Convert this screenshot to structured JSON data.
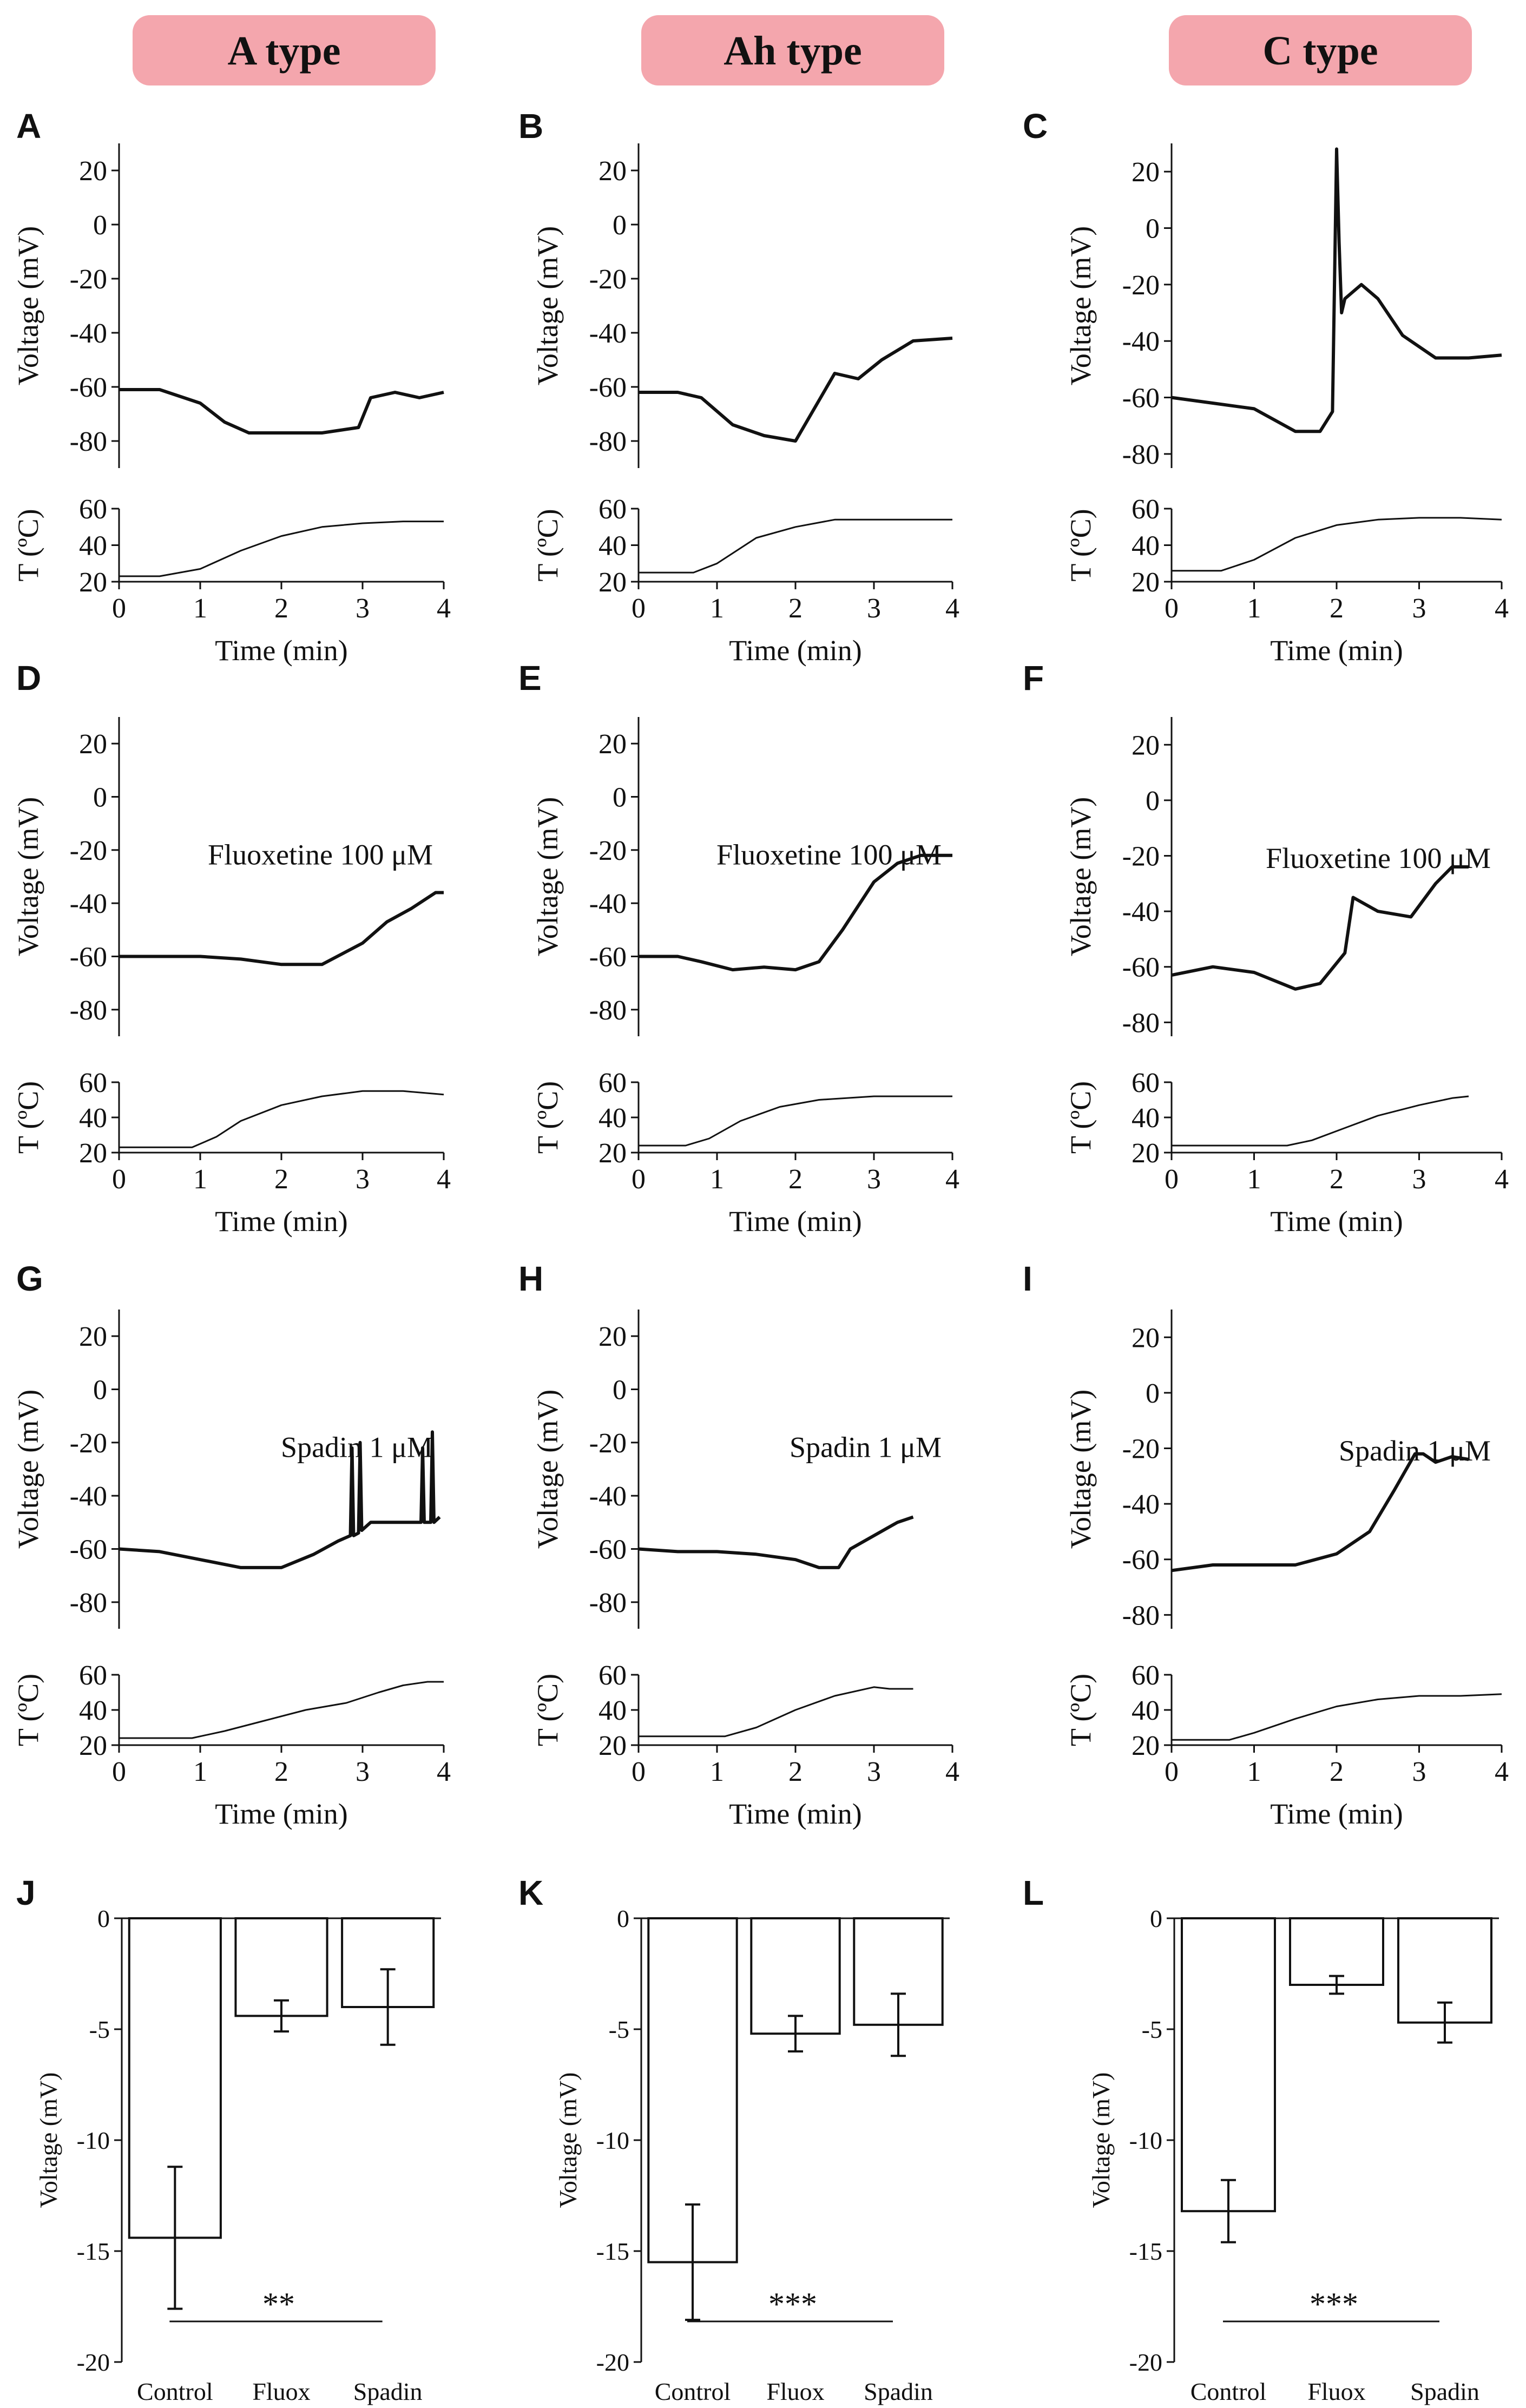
{
  "header_color": "#f4a6ad",
  "column_headers": [
    "A type",
    "Ah type",
    "C type"
  ],
  "chart_data": [
    {
      "panel": "A",
      "type": "line",
      "title": "",
      "voltage_axis": {
        "ylabel": "Voltage (mV)",
        "ylim": [
          -90,
          30
        ],
        "ticks": [
          20,
          0,
          -20,
          -40,
          -60,
          -80
        ]
      },
      "temp_axis": {
        "ylabel": "T (ºC)",
        "ylim": [
          20,
          60
        ],
        "ticks": [
          60,
          40,
          20
        ]
      },
      "x_axis": {
        "xlabel": "Time (min)",
        "xlim": [
          0,
          4
        ],
        "ticks": [
          0,
          1,
          2,
          3,
          4
        ]
      },
      "annotation": "",
      "voltage_series": {
        "name": "Voltage",
        "x": [
          0,
          0.5,
          1.0,
          1.3,
          1.6,
          2.0,
          2.5,
          2.95,
          3.1,
          3.4,
          3.7,
          4.0
        ],
        "y": [
          -61,
          -61,
          -66,
          -73,
          -77,
          -77,
          -77,
          -75,
          -64,
          -62,
          -64,
          -62
        ]
      },
      "temp_series": {
        "name": "Temperature",
        "x": [
          0,
          0.5,
          1.0,
          1.5,
          2.0,
          2.5,
          3.0,
          3.5,
          4.0
        ],
        "y": [
          23,
          23,
          27,
          37,
          45,
          50,
          52,
          53,
          53
        ]
      }
    },
    {
      "panel": "B",
      "type": "line",
      "title": "",
      "voltage_axis": {
        "ylabel": "Voltage (mV)",
        "ylim": [
          -90,
          30
        ],
        "ticks": [
          20,
          0,
          -20,
          -40,
          -60,
          -80
        ]
      },
      "temp_axis": {
        "ylabel": "T (ºC)",
        "ylim": [
          20,
          60
        ],
        "ticks": [
          60,
          40,
          20
        ]
      },
      "x_axis": {
        "xlabel": "Time (min)",
        "xlim": [
          0,
          4
        ],
        "ticks": [
          0,
          1,
          2,
          3,
          4
        ]
      },
      "annotation": "",
      "voltage_series": {
        "name": "Voltage",
        "x": [
          0,
          0.5,
          0.8,
          1.2,
          1.6,
          2.0,
          2.2,
          2.5,
          2.8,
          3.1,
          3.5,
          4.0
        ],
        "y": [
          -62,
          -62,
          -64,
          -74,
          -78,
          -80,
          -70,
          -55,
          -57,
          -50,
          -43,
          -42
        ]
      },
      "temp_series": {
        "name": "Temperature",
        "x": [
          0,
          0.7,
          1.0,
          1.5,
          2.0,
          2.5,
          3.0,
          3.5,
          4.0
        ],
        "y": [
          25,
          25,
          30,
          44,
          50,
          54,
          54,
          54,
          54
        ]
      }
    },
    {
      "panel": "C",
      "type": "line",
      "title": "",
      "voltage_axis": {
        "ylabel": "Voltage (mV)",
        "ylim": [
          -85,
          30
        ],
        "ticks": [
          20,
          0,
          -20,
          -40,
          -60,
          -80
        ]
      },
      "temp_axis": {
        "ylabel": "T (ºC)",
        "ylim": [
          20,
          60
        ],
        "ticks": [
          60,
          40,
          20
        ]
      },
      "x_axis": {
        "xlabel": "Time (min)",
        "xlim": [
          0,
          4
        ],
        "ticks": [
          0,
          1,
          2,
          3,
          4
        ]
      },
      "annotation": "",
      "voltage_series": {
        "name": "Voltage",
        "x": [
          0,
          0.5,
          1.0,
          1.5,
          1.8,
          1.95,
          2.0,
          2.03,
          2.06,
          2.1,
          2.3,
          2.5,
          2.8,
          3.2,
          3.6,
          4.0
        ],
        "y": [
          -60,
          -62,
          -64,
          -72,
          -72,
          -65,
          28,
          -5,
          -30,
          -25,
          -20,
          -25,
          -38,
          -46,
          -46,
          -45
        ]
      },
      "temp_series": {
        "name": "Temperature",
        "x": [
          0,
          0.6,
          1.0,
          1.5,
          2.0,
          2.5,
          3.0,
          3.5,
          4.0
        ],
        "y": [
          26,
          26,
          32,
          44,
          51,
          54,
          55,
          55,
          54
        ]
      }
    },
    {
      "panel": "D",
      "type": "line",
      "title": "",
      "voltage_axis": {
        "ylabel": "Voltage (mV)",
        "ylim": [
          -90,
          30
        ],
        "ticks": [
          20,
          0,
          -20,
          -40,
          -60,
          -80
        ]
      },
      "temp_axis": {
        "ylabel": "T (ºC)",
        "ylim": [
          20,
          60
        ],
        "ticks": [
          60,
          40,
          20
        ]
      },
      "x_axis": {
        "xlabel": "Time (min)",
        "xlim": [
          0,
          4
        ],
        "ticks": [
          0,
          1,
          2,
          3,
          4
        ]
      },
      "annotation": "Fluoxetine 100 μM",
      "voltage_series": {
        "name": "Voltage",
        "x": [
          0,
          0.5,
          1.0,
          1.5,
          2.0,
          2.5,
          3.0,
          3.3,
          3.6,
          3.9,
          4.0
        ],
        "y": [
          -60,
          -60,
          -60,
          -61,
          -63,
          -63,
          -55,
          -47,
          -42,
          -36,
          -36
        ]
      },
      "temp_series": {
        "name": "Temperature",
        "x": [
          0,
          0.9,
          1.2,
          1.5,
          2.0,
          2.5,
          3.0,
          3.5,
          4.0
        ],
        "y": [
          23,
          23,
          29,
          38,
          47,
          52,
          55,
          55,
          53
        ]
      }
    },
    {
      "panel": "E",
      "type": "line",
      "title": "",
      "voltage_axis": {
        "ylabel": "Voltage (mV)",
        "ylim": [
          -90,
          30
        ],
        "ticks": [
          20,
          0,
          -20,
          -40,
          -60,
          -80
        ]
      },
      "temp_axis": {
        "ylabel": "T (ºC)",
        "ylim": [
          20,
          60
        ],
        "ticks": [
          60,
          40,
          20
        ]
      },
      "x_axis": {
        "xlabel": "Time (min)",
        "xlim": [
          0,
          4
        ],
        "ticks": [
          0,
          1,
          2,
          3,
          4
        ]
      },
      "annotation": "Fluoxetine 100 μM",
      "voltage_series": {
        "name": "Voltage",
        "x": [
          0,
          0.5,
          0.8,
          1.2,
          1.6,
          2.0,
          2.3,
          2.6,
          3.0,
          3.3,
          3.6,
          4.0
        ],
        "y": [
          -60,
          -60,
          -62,
          -65,
          -64,
          -65,
          -62,
          -50,
          -32,
          -25,
          -22,
          -22
        ]
      },
      "temp_series": {
        "name": "Temperature",
        "x": [
          0,
          0.6,
          0.9,
          1.3,
          1.8,
          2.3,
          3.0,
          3.5,
          4.0
        ],
        "y": [
          24,
          24,
          28,
          38,
          46,
          50,
          52,
          52,
          52
        ]
      }
    },
    {
      "panel": "F",
      "type": "line",
      "title": "",
      "voltage_axis": {
        "ylabel": "Voltage (mV)",
        "ylim": [
          -85,
          30
        ],
        "ticks": [
          20,
          0,
          -20,
          -40,
          -60,
          -80
        ]
      },
      "temp_axis": {
        "ylabel": "T (ºC)",
        "ylim": [
          20,
          60
        ],
        "ticks": [
          60,
          40,
          20
        ]
      },
      "x_axis": {
        "xlabel": "Time (min)",
        "xlim": [
          0,
          4
        ],
        "ticks": [
          0,
          1,
          2,
          3,
          4
        ]
      },
      "annotation": "Fluoxetine 100 μM",
      "voltage_series": {
        "name": "Voltage",
        "x": [
          0,
          0.5,
          1.0,
          1.5,
          1.8,
          2.1,
          2.2,
          2.5,
          2.9,
          3.2,
          3.4,
          3.6
        ],
        "y": [
          -63,
          -60,
          -62,
          -68,
          -66,
          -55,
          -35,
          -40,
          -42,
          -30,
          -24,
          -24
        ]
      },
      "temp_series": {
        "name": "Temperature",
        "x": [
          0,
          1.4,
          1.7,
          2.1,
          2.5,
          3.0,
          3.4,
          3.6
        ],
        "y": [
          24,
          24,
          27,
          34,
          41,
          47,
          51,
          52
        ]
      }
    },
    {
      "panel": "G",
      "type": "line",
      "title": "",
      "voltage_axis": {
        "ylabel": "Voltage (mV)",
        "ylim": [
          -90,
          30
        ],
        "ticks": [
          20,
          0,
          -20,
          -40,
          -60,
          -80
        ]
      },
      "temp_axis": {
        "ylabel": "T (ºC)",
        "ylim": [
          20,
          60
        ],
        "ticks": [
          60,
          40,
          20
        ]
      },
      "x_axis": {
        "xlabel": "Time (min)",
        "xlim": [
          0,
          4
        ],
        "ticks": [
          0,
          1,
          2,
          3,
          4
        ]
      },
      "annotation": "Spadin 1 μM",
      "voltage_series": {
        "name": "Voltage",
        "x": [
          0,
          0.5,
          1.0,
          1.5,
          2.0,
          2.4,
          2.7,
          2.85,
          2.87,
          2.89,
          2.95,
          2.97,
          2.99,
          3.1,
          3.6,
          3.72,
          3.74,
          3.76,
          3.84,
          3.86,
          3.88,
          3.95
        ],
        "y": [
          -60,
          -61,
          -64,
          -67,
          -67,
          -62,
          -57,
          -55,
          -22,
          -55,
          -54,
          -20,
          -53,
          -50,
          -50,
          -50,
          -22,
          -50,
          -50,
          -16,
          -50,
          -48
        ]
      },
      "temp_series": {
        "name": "Temperature",
        "x": [
          0,
          0.9,
          1.3,
          1.8,
          2.3,
          2.8,
          3.2,
          3.5,
          3.8,
          4.0
        ],
        "y": [
          24,
          24,
          28,
          34,
          40,
          44,
          50,
          54,
          56,
          56
        ]
      }
    },
    {
      "panel": "H",
      "type": "line",
      "title": "",
      "voltage_axis": {
        "ylabel": "Voltage (mV)",
        "ylim": [
          -90,
          30
        ],
        "ticks": [
          20,
          0,
          -20,
          -40,
          -60,
          -80
        ]
      },
      "temp_axis": {
        "ylabel": "T (ºC)",
        "ylim": [
          20,
          60
        ],
        "ticks": [
          60,
          40,
          20
        ]
      },
      "x_axis": {
        "xlabel": "Time (min)",
        "xlim": [
          0,
          4
        ],
        "ticks": [
          0,
          1,
          2,
          3,
          4
        ]
      },
      "annotation": "Spadin 1 μM",
      "voltage_series": {
        "name": "Voltage",
        "x": [
          0,
          0.5,
          1.0,
          1.5,
          2.0,
          2.3,
          2.55,
          2.7,
          3.0,
          3.3,
          3.5
        ],
        "y": [
          -60,
          -61,
          -61,
          -62,
          -64,
          -67,
          -67,
          -60,
          -55,
          -50,
          -48
        ]
      },
      "temp_series": {
        "name": "Temperature",
        "x": [
          0,
          1.1,
          1.5,
          2.0,
          2.5,
          3.0,
          3.2,
          3.5
        ],
        "y": [
          25,
          25,
          30,
          40,
          48,
          53,
          52,
          52
        ]
      }
    },
    {
      "panel": "I",
      "type": "line",
      "title": "",
      "voltage_axis": {
        "ylabel": "Voltage (mV)",
        "ylim": [
          -85,
          30
        ],
        "ticks": [
          20,
          0,
          -20,
          -40,
          -60,
          -80
        ]
      },
      "temp_axis": {
        "ylabel": "T (ºC)",
        "ylim": [
          20,
          60
        ],
        "ticks": [
          60,
          40,
          20
        ]
      },
      "x_axis": {
        "xlabel": "Time (min)",
        "xlim": [
          0,
          4
        ],
        "ticks": [
          0,
          1,
          2,
          3,
          4
        ]
      },
      "annotation": "Spadin 1 μM",
      "voltage_series": {
        "name": "Voltage",
        "x": [
          0,
          0.5,
          1.0,
          1.5,
          2.0,
          2.4,
          2.7,
          2.95,
          3.05,
          3.2,
          3.4,
          3.6
        ],
        "y": [
          -64,
          -62,
          -62,
          -62,
          -58,
          -50,
          -35,
          -22,
          -22,
          -25,
          -23,
          -24
        ]
      },
      "temp_series": {
        "name": "Temperature",
        "x": [
          0,
          0.7,
          1.0,
          1.5,
          2.0,
          2.5,
          3.0,
          3.5,
          4.0
        ],
        "y": [
          23,
          23,
          27,
          35,
          42,
          46,
          48,
          48,
          49
        ]
      }
    },
    {
      "panel": "J",
      "type": "bar",
      "title": "",
      "categories": [
        "Control",
        "Fluox",
        "Spadin"
      ],
      "values": [
        -14.4,
        -4.4,
        -4.0
      ],
      "errors": [
        3.2,
        0.7,
        1.7
      ],
      "ylabel": "Voltage (mV)",
      "ylim": [
        -20,
        0
      ],
      "ticks": [
        0,
        -5,
        -10,
        -15,
        -20
      ],
      "significance": "**"
    },
    {
      "panel": "K",
      "type": "bar",
      "title": "",
      "categories": [
        "Control",
        "Fluox",
        "Spadin"
      ],
      "values": [
        -15.5,
        -5.2,
        -4.8
      ],
      "errors": [
        2.6,
        0.8,
        1.4
      ],
      "ylabel": "Voltage (mV)",
      "ylim": [
        -20,
        0
      ],
      "ticks": [
        0,
        -5,
        -10,
        -15,
        -20
      ],
      "significance": "***"
    },
    {
      "panel": "L",
      "type": "bar",
      "title": "",
      "categories": [
        "Control",
        "Fluox",
        "Spadin"
      ],
      "values": [
        -13.2,
        -3.0,
        -4.7
      ],
      "errors": [
        1.4,
        0.4,
        0.9
      ],
      "ylabel": "Voltage (mV)",
      "ylim": [
        -20,
        0
      ],
      "ticks": [
        0,
        -5,
        -10,
        -15,
        -20
      ],
      "significance": "***"
    }
  ]
}
